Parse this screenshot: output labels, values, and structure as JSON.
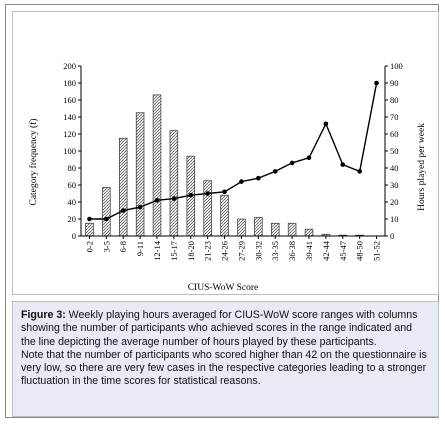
{
  "chart_data": {
    "type": "bar+line",
    "categories": [
      "0-2",
      "3-5",
      "6-8",
      "9-11",
      "12-14",
      "15-17",
      "18-20",
      "21-23",
      "24-26",
      "27-29",
      "30-32",
      "33-35",
      "36-38",
      "39-41",
      "42-44",
      "45-47",
      "48-50",
      "51-52"
    ],
    "series": [
      {
        "axis": "left",
        "style": "bar",
        "values": [
          15,
          57,
          115,
          145,
          166,
          124,
          94,
          65,
          48,
          20,
          22,
          15,
          15,
          8,
          2,
          1,
          1,
          0
        ]
      },
      {
        "axis": "right",
        "style": "line",
        "values": [
          10,
          10,
          15,
          17,
          21,
          22,
          24,
          25,
          26,
          32,
          34,
          38,
          43,
          46,
          66,
          42,
          38,
          90
        ]
      }
    ],
    "xlabel": "CIUS-WoW Score",
    "ylabel_left": "Category frequency (f)",
    "ylabel_right": "Hours played per week",
    "ylim_left": [
      0,
      200
    ],
    "yticks_left": [
      0,
      20,
      40,
      60,
      80,
      100,
      120,
      140,
      160,
      180,
      200
    ],
    "ylim_right": [
      0,
      100
    ],
    "yticks_right": [
      0,
      10,
      20,
      30,
      40,
      50,
      60,
      70,
      80,
      90,
      100
    ],
    "grid": false,
    "colors": {
      "bar_fill": "#cfcfcf",
      "bar_stroke": "#333333",
      "line": "#000000",
      "marker": "#000000"
    }
  },
  "caption": {
    "label": "Figure 3:",
    "paragraph1": " Weekly playing hours averaged for CIUS-WoW score ranges with columns showing the number of participants who achieved scores in the range indicated and the line depicting the average number of hours played by these participants.",
    "paragraph2": "Note that the number of participants who scored higher than 42 on the questionnaire is very low, so there are very few cases in the respective categories leading to a stronger fluctuation in the time scores for statistical reasons."
  }
}
